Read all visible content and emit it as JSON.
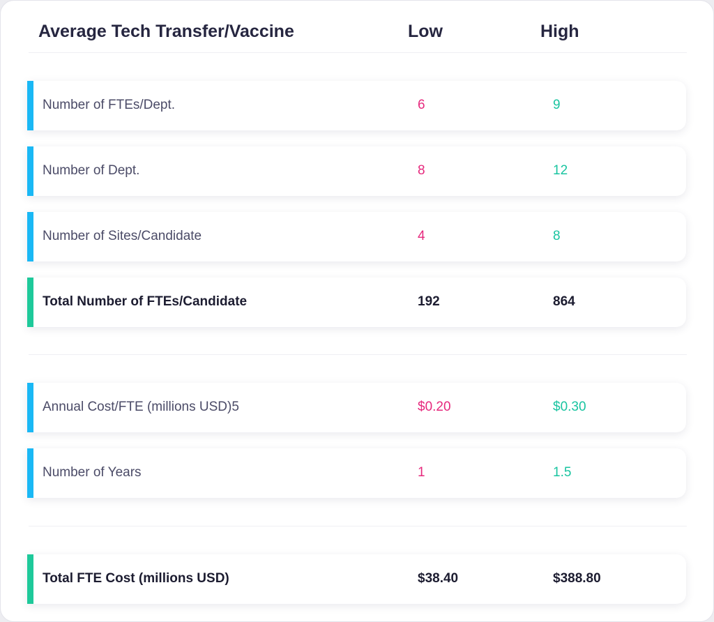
{
  "header": {
    "title": "Average Tech Transfer/Vaccine",
    "low_label": "Low",
    "high_label": "High"
  },
  "rows": [
    {
      "label": "Number of FTEs/Dept.",
      "low": "6",
      "high": "9",
      "kind": "input"
    },
    {
      "label": "Number of Dept.",
      "low": "8",
      "high": "12",
      "kind": "input"
    },
    {
      "label": "Number of Sites/Candidate",
      "low": "4",
      "high": "8",
      "kind": "input"
    },
    {
      "label": "Total Number of FTEs/Candidate",
      "low": "192",
      "high": "864",
      "kind": "total"
    },
    {
      "label": "Annual Cost/FTE (millions USD)5",
      "low": "$0.20",
      "high": "$0.30",
      "kind": "input"
    },
    {
      "label": "Number of Years",
      "low": "1",
      "high": "1.5",
      "kind": "input"
    },
    {
      "label": "Total FTE Cost (millions USD)",
      "low": "$38.40",
      "high": "$388.80",
      "kind": "total"
    }
  ],
  "colors": {
    "low_value": "#e6297d",
    "high_value": "#19c4a0",
    "input_accent": "#1ab8f5",
    "total_accent": "#1ec99a",
    "title_text": "#262640"
  }
}
